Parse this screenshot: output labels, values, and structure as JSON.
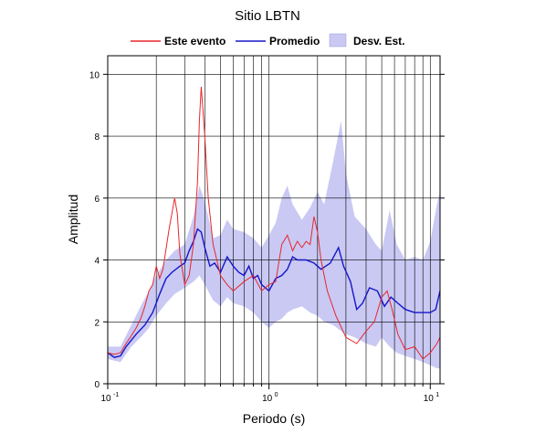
{
  "chart_data": {
    "type": "line",
    "title": "Sitio LBTN",
    "xlabel": "Periodo (s)",
    "ylabel": "Amplitud",
    "xscale": "log",
    "xlim": [
      0.1,
      11.5
    ],
    "ylim": [
      0,
      10.6
    ],
    "grid": true,
    "legend_placement": "top",
    "x_tick_labels": [
      {
        "x": 0.1,
        "base": "10",
        "exp": "-1"
      },
      {
        "x": 1,
        "base": "10",
        "exp": "0"
      },
      {
        "x": 10,
        "base": "10",
        "exp": "1"
      }
    ],
    "y_ticks": [
      0,
      2,
      4,
      6,
      8,
      10
    ],
    "legend": [
      {
        "label": "Este evento",
        "kind": "line",
        "color": "#e8262b"
      },
      {
        "label": "Promedio",
        "kind": "line",
        "color": "#1515c9"
      },
      {
        "label": "Desv. Est.",
        "kind": "band",
        "color": "#c9c9f4"
      }
    ],
    "series": [
      {
        "name": "Este evento",
        "color": "#e8262b",
        "points": [
          [
            0.1,
            1.0
          ],
          [
            0.11,
            0.95
          ],
          [
            0.12,
            1.0
          ],
          [
            0.13,
            1.3
          ],
          [
            0.14,
            1.55
          ],
          [
            0.15,
            1.8
          ],
          [
            0.16,
            2.1
          ],
          [
            0.17,
            2.5
          ],
          [
            0.18,
            3.0
          ],
          [
            0.19,
            3.2
          ],
          [
            0.2,
            3.8
          ],
          [
            0.21,
            3.4
          ],
          [
            0.22,
            3.7
          ],
          [
            0.24,
            5.0
          ],
          [
            0.26,
            6.0
          ],
          [
            0.27,
            5.5
          ],
          [
            0.28,
            4.2
          ],
          [
            0.3,
            3.2
          ],
          [
            0.32,
            3.5
          ],
          [
            0.34,
            4.5
          ],
          [
            0.36,
            6.5
          ],
          [
            0.37,
            8.5
          ],
          [
            0.38,
            9.6
          ],
          [
            0.39,
            8.8
          ],
          [
            0.4,
            8.0
          ],
          [
            0.42,
            6.0
          ],
          [
            0.45,
            4.5
          ],
          [
            0.5,
            3.5
          ],
          [
            0.55,
            3.2
          ],
          [
            0.6,
            3.0
          ],
          [
            0.7,
            3.3
          ],
          [
            0.8,
            3.5
          ],
          [
            0.9,
            3.0
          ],
          [
            1.0,
            3.2
          ],
          [
            1.1,
            3.3
          ],
          [
            1.2,
            4.5
          ],
          [
            1.3,
            4.8
          ],
          [
            1.4,
            4.3
          ],
          [
            1.5,
            4.6
          ],
          [
            1.6,
            4.4
          ],
          [
            1.7,
            4.6
          ],
          [
            1.8,
            4.5
          ],
          [
            1.9,
            5.4
          ],
          [
            2.0,
            4.9
          ],
          [
            2.1,
            4.0
          ],
          [
            2.3,
            3.0
          ],
          [
            2.6,
            2.2
          ],
          [
            3.0,
            1.5
          ],
          [
            3.5,
            1.3
          ],
          [
            4.0,
            1.7
          ],
          [
            4.5,
            2.0
          ],
          [
            5.0,
            2.8
          ],
          [
            5.4,
            3.0
          ],
          [
            5.8,
            2.4
          ],
          [
            6.3,
            1.6
          ],
          [
            7.0,
            1.1
          ],
          [
            8.0,
            1.2
          ],
          [
            9.0,
            0.8
          ],
          [
            10.0,
            1.0
          ],
          [
            11.0,
            1.3
          ],
          [
            11.5,
            1.5
          ]
        ]
      },
      {
        "name": "Promedio",
        "color": "#1515c9",
        "points": [
          [
            0.1,
            1.0
          ],
          [
            0.11,
            0.85
          ],
          [
            0.12,
            0.9
          ],
          [
            0.13,
            1.2
          ],
          [
            0.15,
            1.6
          ],
          [
            0.17,
            1.9
          ],
          [
            0.19,
            2.3
          ],
          [
            0.21,
            2.9
          ],
          [
            0.23,
            3.4
          ],
          [
            0.25,
            3.6
          ],
          [
            0.28,
            3.8
          ],
          [
            0.3,
            3.9
          ],
          [
            0.32,
            4.3
          ],
          [
            0.34,
            4.6
          ],
          [
            0.36,
            5.0
          ],
          [
            0.38,
            4.9
          ],
          [
            0.4,
            4.4
          ],
          [
            0.43,
            3.8
          ],
          [
            0.46,
            3.9
          ],
          [
            0.5,
            3.6
          ],
          [
            0.55,
            4.1
          ],
          [
            0.6,
            3.8
          ],
          [
            0.65,
            3.6
          ],
          [
            0.7,
            3.5
          ],
          [
            0.75,
            3.8
          ],
          [
            0.8,
            3.4
          ],
          [
            0.85,
            3.5
          ],
          [
            0.9,
            3.2
          ],
          [
            0.95,
            3.1
          ],
          [
            1.0,
            3.0
          ],
          [
            1.1,
            3.4
          ],
          [
            1.2,
            3.5
          ],
          [
            1.3,
            3.7
          ],
          [
            1.4,
            4.1
          ],
          [
            1.5,
            4.0
          ],
          [
            1.7,
            4.0
          ],
          [
            1.9,
            3.9
          ],
          [
            2.1,
            3.7
          ],
          [
            2.4,
            3.9
          ],
          [
            2.7,
            4.4
          ],
          [
            2.9,
            3.8
          ],
          [
            3.2,
            3.3
          ],
          [
            3.5,
            2.4
          ],
          [
            3.8,
            2.6
          ],
          [
            4.2,
            3.1
          ],
          [
            4.7,
            3.0
          ],
          [
            5.2,
            2.5
          ],
          [
            5.7,
            2.8
          ],
          [
            6.3,
            2.6
          ],
          [
            7.0,
            2.4
          ],
          [
            8.0,
            2.3
          ],
          [
            9.0,
            2.3
          ],
          [
            10.0,
            2.3
          ],
          [
            10.8,
            2.4
          ],
          [
            11.5,
            3.0
          ]
        ]
      }
    ],
    "band": {
      "name": "Desv. Est.",
      "color": "#c9c9f4",
      "upper": [
        [
          0.1,
          1.2
        ],
        [
          0.12,
          1.2
        ],
        [
          0.14,
          1.9
        ],
        [
          0.16,
          2.5
        ],
        [
          0.18,
          3.0
        ],
        [
          0.2,
          3.5
        ],
        [
          0.23,
          4.0
        ],
        [
          0.26,
          4.3
        ],
        [
          0.3,
          4.5
        ],
        [
          0.34,
          5.4
        ],
        [
          0.37,
          6.4
        ],
        [
          0.4,
          5.9
        ],
        [
          0.45,
          4.7
        ],
        [
          0.5,
          4.8
        ],
        [
          0.55,
          5.3
        ],
        [
          0.6,
          5.0
        ],
        [
          0.7,
          4.9
        ],
        [
          0.8,
          4.7
        ],
        [
          0.9,
          4.4
        ],
        [
          1.0,
          4.8
        ],
        [
          1.1,
          5.2
        ],
        [
          1.2,
          6.0
        ],
        [
          1.3,
          6.4
        ],
        [
          1.4,
          5.8
        ],
        [
          1.6,
          5.3
        ],
        [
          1.8,
          5.7
        ],
        [
          2.0,
          6.2
        ],
        [
          2.2,
          5.8
        ],
        [
          2.5,
          7.2
        ],
        [
          2.8,
          8.5
        ],
        [
          3.0,
          6.8
        ],
        [
          3.4,
          5.4
        ],
        [
          4.0,
          5.0
        ],
        [
          4.6,
          4.5
        ],
        [
          5.0,
          4.3
        ],
        [
          5.6,
          5.6
        ],
        [
          6.2,
          4.5
        ],
        [
          7.0,
          4.0
        ],
        [
          8.0,
          4.1
        ],
        [
          9.0,
          4.0
        ],
        [
          10.0,
          4.6
        ],
        [
          11.0,
          5.8
        ],
        [
          11.5,
          6.2
        ]
      ],
      "lower": [
        [
          0.1,
          0.8
        ],
        [
          0.12,
          0.7
        ],
        [
          0.14,
          1.2
        ],
        [
          0.16,
          1.5
        ],
        [
          0.18,
          1.8
        ],
        [
          0.2,
          2.2
        ],
        [
          0.23,
          2.6
        ],
        [
          0.26,
          2.9
        ],
        [
          0.3,
          3.1
        ],
        [
          0.34,
          3.3
        ],
        [
          0.37,
          3.5
        ],
        [
          0.4,
          3.2
        ],
        [
          0.45,
          2.7
        ],
        [
          0.5,
          2.5
        ],
        [
          0.55,
          2.8
        ],
        [
          0.6,
          2.6
        ],
        [
          0.7,
          2.5
        ],
        [
          0.8,
          2.3
        ],
        [
          0.9,
          2.0
        ],
        [
          1.0,
          1.8
        ],
        [
          1.1,
          2.0
        ],
        [
          1.2,
          2.1
        ],
        [
          1.3,
          2.3
        ],
        [
          1.4,
          2.4
        ],
        [
          1.6,
          2.5
        ],
        [
          1.8,
          2.3
        ],
        [
          2.0,
          2.2
        ],
        [
          2.2,
          2.0
        ],
        [
          2.5,
          1.9
        ],
        [
          2.8,
          1.7
        ],
        [
          3.0,
          1.6
        ],
        [
          3.4,
          1.5
        ],
        [
          4.0,
          1.3
        ],
        [
          4.6,
          1.2
        ],
        [
          5.0,
          1.5
        ],
        [
          5.6,
          1.2
        ],
        [
          6.2,
          1.0
        ],
        [
          7.0,
          0.9
        ],
        [
          8.0,
          0.8
        ],
        [
          9.0,
          0.7
        ],
        [
          10.0,
          0.6
        ],
        [
          11.0,
          0.5
        ],
        [
          11.5,
          0.5
        ]
      ]
    }
  }
}
